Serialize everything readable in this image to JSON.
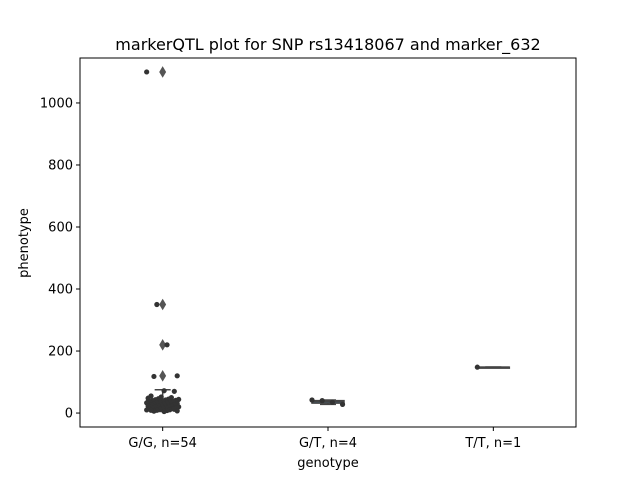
{
  "chart_data": {
    "type": "box-strip",
    "title": "markerQTL plot for SNP rs13418067 and marker_632",
    "xlabel": "genotype",
    "ylabel": "phenotype",
    "categories": [
      "G/G, n=54",
      "G/T, n=4",
      "T/T, n=1"
    ],
    "ylim": [
      -45,
      1145
    ],
    "yticks": [
      0,
      200,
      400,
      600,
      800,
      1000
    ],
    "ytick_labels": [
      "0",
      "200",
      "400",
      "600",
      "800",
      "1000"
    ],
    "colors": {
      "box": "#3a9ad9",
      "edge": "#444444",
      "points": "#333333",
      "frame": "#000000"
    },
    "boxes": [
      {
        "category": "G/G, n=54",
        "q1": 18,
        "median": 28,
        "q3": 42,
        "whisker_low": 5,
        "whisker_high": 75,
        "outliers": [
          1100,
          350,
          220,
          120
        ]
      },
      {
        "category": "G/T, n=4",
        "q1": 32,
        "median": 37,
        "q3": 40,
        "whisker_low": 28,
        "whisker_high": 42,
        "outliers": []
      },
      {
        "category": "T/T, n=1",
        "q1": 148,
        "median": 148,
        "q3": 148,
        "whisker_low": 148,
        "whisker_high": 148,
        "outliers": []
      }
    ],
    "points": [
      {
        "category": "G/G, n=54",
        "values": [
          1100,
          350,
          220,
          120,
          118,
          72,
          70,
          55,
          52,
          50,
          48,
          46,
          45,
          44,
          43,
          42,
          41,
          40,
          38,
          37,
          36,
          35,
          34,
          33,
          32,
          31,
          30,
          29,
          28,
          27,
          26,
          25,
          24,
          23,
          22,
          21,
          20,
          19,
          18,
          17,
          16,
          15,
          14,
          13,
          12,
          11,
          10,
          9,
          8,
          7,
          6,
          5,
          12,
          9
        ]
      },
      {
        "category": "G/T, n=4",
        "values": [
          42,
          40,
          35,
          28
        ]
      },
      {
        "category": "T/T, n=1",
        "values": [
          148
        ]
      }
    ]
  }
}
